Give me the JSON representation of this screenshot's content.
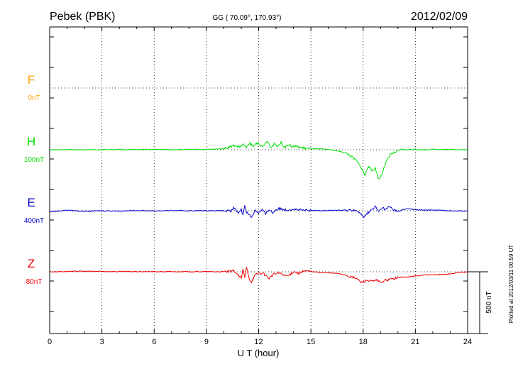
{
  "header": {
    "station": "Pebek (PBK)",
    "coords": "GG ( 70.09°, 170.93°)",
    "date": "2012/02/09"
  },
  "footer": {
    "plotted": "Plotted at 2012/03/11 00:59 UT"
  },
  "chart_data": {
    "type": "line",
    "xlabel": "U T (hour)",
    "xlim": [
      0,
      24
    ],
    "xticks": [
      "0",
      "3",
      "6",
      "9",
      "12",
      "15",
      "18",
      "21",
      "24"
    ],
    "grid": true,
    "scale_bar": {
      "label": "500 nT",
      "nT": 500
    },
    "series": [
      {
        "name": "F",
        "scale": "0nT",
        "color": "#ffa500",
        "x": [],
        "y": []
      },
      {
        "name": "H",
        "scale": "100nT",
        "color": "#00dd00",
        "x": [
          0,
          1,
          2,
          3,
          4,
          5,
          6,
          7,
          8,
          9,
          9.5,
          10,
          10.3,
          10.6,
          10.9,
          11.1,
          11.3,
          11.5,
          11.7,
          11.9,
          12.1,
          12.3,
          12.5,
          12.7,
          12.9,
          13.1,
          13.3,
          13.5,
          13.7,
          13.9,
          14.2,
          14.6,
          15,
          15.5,
          16,
          16.5,
          17,
          17.3,
          17.6,
          17.9,
          18.1,
          18.3,
          18.5,
          18.7,
          18.9,
          19.1,
          19.3,
          19.6,
          19.9,
          20.2,
          20.5,
          21,
          21.5,
          22,
          23,
          24
        ],
        "y": [
          0,
          0.1,
          0,
          0.1,
          0.2,
          0.1,
          0.2,
          0.1,
          0.2,
          0.3,
          0.5,
          1.2,
          2.5,
          4,
          2.5,
          5,
          2,
          6,
          3,
          7,
          3,
          4,
          8,
          2,
          6,
          3,
          7,
          2,
          5,
          3,
          3,
          1.5,
          1,
          0.6,
          0.3,
          -1,
          -3,
          -6,
          -10,
          -17,
          -24,
          -15,
          -20,
          -17,
          -28,
          -22,
          -12,
          -4,
          -2,
          0.5,
          0,
          0.5,
          -0.2,
          0.4,
          0.2,
          0
        ]
      },
      {
        "name": "E",
        "scale": "400nT",
        "color": "#0000cc",
        "x": [
          0,
          1,
          2,
          3,
          4,
          5,
          6,
          7,
          8,
          9,
          10,
          10.4,
          10.6,
          10.8,
          11,
          11.1,
          11.2,
          11.3,
          11.4,
          11.6,
          11.8,
          12,
          12.2,
          12.4,
          12.6,
          12.8,
          13,
          13.2,
          13.6,
          14,
          14.5,
          15,
          16,
          17,
          17.5,
          17.8,
          18,
          18.2,
          18.4,
          18.6,
          18.7,
          18.9,
          19.1,
          19.3,
          19.5,
          19.7,
          20,
          20.3,
          20.6,
          21,
          21.5,
          22,
          23,
          24
        ],
        "y": [
          -1,
          0.5,
          -0.5,
          0,
          -0.2,
          0.2,
          -0.1,
          0.2,
          0,
          0.1,
          0,
          -0.5,
          3,
          -2,
          1,
          -4,
          6,
          -1,
          -3,
          -6,
          0.5,
          -2,
          1,
          -3,
          1.5,
          -2,
          1,
          2,
          0.8,
          1.5,
          0.5,
          0.2,
          0.3,
          0.5,
          0.8,
          -2,
          -6,
          -3,
          0,
          2,
          4,
          -1,
          3,
          1,
          4,
          1.5,
          -0.5,
          1,
          2,
          1,
          0.5,
          0.8,
          0,
          -0.2
        ]
      },
      {
        "name": "Z",
        "scale": "80nT",
        "color": "#ee0000",
        "x": [
          0,
          1,
          2,
          3,
          4,
          5,
          6,
          7,
          8,
          9,
          10,
          10.4,
          10.6,
          10.8,
          11,
          11.1,
          11.2,
          11.3,
          11.5,
          11.6,
          11.8,
          12,
          12.3,
          12.6,
          12.9,
          13.2,
          13.5,
          13.8,
          14,
          14.3,
          14.6,
          15,
          15.5,
          16,
          16.5,
          17,
          17.3,
          17.6,
          17.9,
          18.2,
          18.5,
          18.8,
          19,
          19.3,
          19.6,
          19.9,
          20.2,
          20.5,
          21,
          21.5,
          22,
          23,
          23.5,
          24
        ],
        "y": [
          0,
          0.3,
          0.5,
          0.3,
          0.2,
          0.2,
          0.1,
          0.1,
          0.1,
          0.1,
          0,
          0.3,
          1,
          -3,
          -6,
          2,
          -5,
          4,
          -8,
          -9,
          -3,
          -1,
          -2,
          -6,
          -2,
          -1,
          -4,
          -3,
          0.5,
          -1.5,
          0.6,
          0.4,
          -0.5,
          -1,
          -1.5,
          -3,
          -5,
          -6,
          -10,
          -8,
          -9,
          -8,
          -10,
          -8,
          -7,
          -6,
          -5,
          -5,
          -4,
          -3,
          -3,
          -2,
          -0.5,
          0
        ]
      }
    ]
  }
}
